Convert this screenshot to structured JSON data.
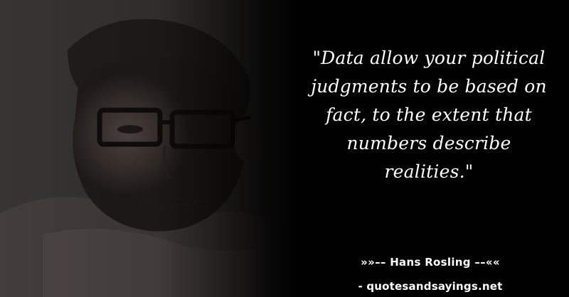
{
  "quote": {
    "lines": [
      "\"Data allow your political",
      "judgments to be based on",
      "fact, to the extent that",
      "numbers describe",
      "realities.\""
    ]
  },
  "author": {
    "prefix": "»»–– ",
    "name": "Hans Rosling",
    "suffix": " ––««"
  },
  "source": {
    "text": "- quotesandsayings.net"
  },
  "colors": {
    "background": "#000000",
    "text": "#ffffff"
  }
}
